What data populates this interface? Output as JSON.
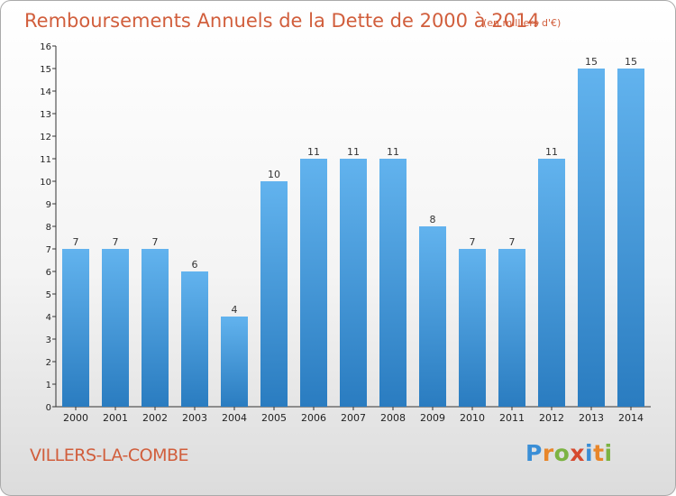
{
  "title": "Remboursements Annuels de la Dette de 2000 à 2014",
  "subtitle": "(en milliers d'€)",
  "commune": "VILLERS-LA-COMBE",
  "brand": {
    "letters": [
      "P",
      "r",
      "o",
      "x",
      "i",
      "t",
      "i"
    ],
    "colors": [
      "#3a8ed6",
      "#e8862a",
      "#7cb342",
      "#d64a2f",
      "#3a8ed6",
      "#e8862a",
      "#7cb342"
    ]
  },
  "colors": {
    "bar_light": "#62b3ee",
    "bar_dark": "#2a7cc0",
    "accent": "#d15e3c"
  },
  "chart_data": {
    "type": "bar",
    "categories": [
      "2000",
      "2001",
      "2002",
      "2003",
      "2004",
      "2005",
      "2006",
      "2007",
      "2008",
      "2009",
      "2010",
      "2011",
      "2012",
      "2013",
      "2014"
    ],
    "values": [
      7,
      7,
      7,
      6,
      4,
      10,
      11,
      11,
      11,
      8,
      7,
      7,
      11,
      15,
      15
    ],
    "title": "Remboursements Annuels de la Dette de 2000 à 2014",
    "subtitle": "(en milliers d'€)",
    "xlabel": "",
    "ylabel": "",
    "ylim": [
      0,
      16
    ],
    "yticks": [
      0,
      1,
      2,
      3,
      4,
      5,
      6,
      7,
      8,
      9,
      10,
      11,
      12,
      13,
      14,
      15,
      16
    ],
    "grid": false,
    "data_labels": true
  }
}
